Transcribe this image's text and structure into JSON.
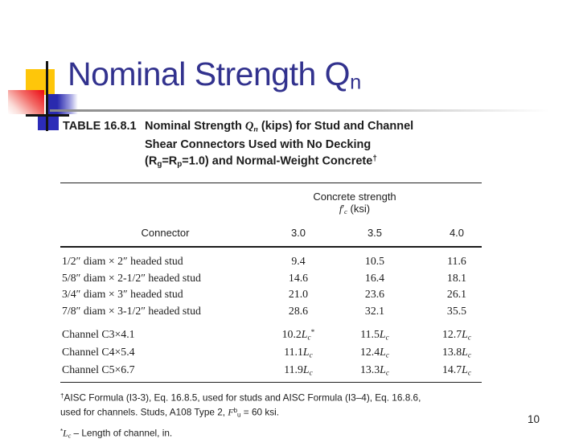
{
  "slide": {
    "title_runs": [
      {
        "t": "Nominal Strength Q"
      },
      {
        "t": "n",
        "s": "sub"
      }
    ],
    "page_number": "10",
    "colors": {
      "title_text": "#32328e",
      "accent_yellow": "#fec60a",
      "accent_red": "#ec1018",
      "accent_blue": "#2a2aae",
      "accent_blue_dark": "#2c2cb8",
      "rule_black": "#141414",
      "underline_gray": "#8a8a8a"
    }
  },
  "figure": {
    "caption": {
      "label": "TABLE 16.8.1",
      "lines": [
        [
          {
            "t": "Nominal Strength "
          },
          {
            "t": "Q",
            "s": "i"
          },
          {
            "t": "n",
            "s": "sub i"
          },
          {
            "t": " (kips) for Stud and Channel"
          }
        ],
        [
          {
            "t": "Shear Connectors Used with No Decking"
          }
        ],
        [
          {
            "t": "(R"
          },
          {
            "t": "g",
            "s": "sub"
          },
          {
            "t": "=R"
          },
          {
            "t": "p",
            "s": "sub"
          },
          {
            "t": "=1.0) and Normal-Weight Concrete"
          },
          {
            "t": "†",
            "s": "sup"
          }
        ]
      ]
    },
    "header": {
      "group_line1": [
        {
          "t": "Concrete strength"
        }
      ],
      "group_line2": [
        {
          "t": "f",
          "s": "i"
        },
        {
          "t": "′"
        },
        {
          "t": "c",
          "s": "sub i"
        },
        {
          "t": " (ksi)"
        }
      ],
      "connector_label": "Connector",
      "strength_values": [
        "3.0",
        "3.5",
        "4.0"
      ]
    },
    "stud_rows": [
      {
        "connector": "1/2″ diam × 2″ headed stud",
        "values": [
          "9.4",
          "10.5",
          "11.6"
        ]
      },
      {
        "connector": "5/8″ diam × 2-1/2″ headed stud",
        "values": [
          "14.6",
          "16.4",
          "18.1"
        ]
      },
      {
        "connector": "3/4″ diam × 3″ headed stud",
        "values": [
          "21.0",
          "23.6",
          "26.1"
        ]
      },
      {
        "connector": "7/8″ diam × 3-1/2″ headed stud",
        "values": [
          "28.6",
          "32.1",
          "35.5"
        ]
      }
    ],
    "channel_rows": [
      {
        "connector": "Channel C3×4.1",
        "values": [
          [
            {
              "t": "10.2"
            },
            {
              "t": "L",
              "s": "i"
            },
            {
              "t": "c",
              "s": "sub i"
            },
            {
              "t": "*",
              "s": "sup"
            }
          ],
          [
            {
              "t": "11.5"
            },
            {
              "t": "L",
              "s": "i"
            },
            {
              "t": "c",
              "s": "sub i"
            }
          ],
          [
            {
              "t": "12.7"
            },
            {
              "t": "L",
              "s": "i"
            },
            {
              "t": "c",
              "s": "sub i"
            }
          ]
        ]
      },
      {
        "connector": "Channel C4×5.4",
        "values": [
          [
            {
              "t": "11.1"
            },
            {
              "t": "L",
              "s": "i"
            },
            {
              "t": "c",
              "s": "sub i"
            }
          ],
          [
            {
              "t": "12.4"
            },
            {
              "t": "L",
              "s": "i"
            },
            {
              "t": "c",
              "s": "sub i"
            }
          ],
          [
            {
              "t": "13.8"
            },
            {
              "t": "L",
              "s": "i"
            },
            {
              "t": "c",
              "s": "sub i"
            }
          ]
        ]
      },
      {
        "connector": "Channel C5×6.7",
        "values": [
          [
            {
              "t": "11.9"
            },
            {
              "t": "L",
              "s": "i"
            },
            {
              "t": "c",
              "s": "sub i"
            }
          ],
          [
            {
              "t": "13.3"
            },
            {
              "t": "L",
              "s": "i"
            },
            {
              "t": "c",
              "s": "sub i"
            }
          ],
          [
            {
              "t": "14.7"
            },
            {
              "t": "L",
              "s": "i"
            },
            {
              "t": "c",
              "s": "sub i"
            }
          ]
        ]
      }
    ],
    "footnotes": [
      [
        {
          "t": "†",
          "s": "sup"
        },
        {
          "t": "AISC Formula (I3-3), Eq. 16.8.5, used for studs and AISC Formula (I3–4), Eq. 16.8.6,"
        },
        {
          "s": "br"
        },
        {
          "t": "used for channels. Studs, A108 Type 2, "
        },
        {
          "t": "F",
          "s": "i"
        },
        {
          "t": "b",
          "s": "sup"
        },
        {
          "t": "u",
          "s": "sub"
        },
        {
          "t": " = 60 ksi."
        }
      ],
      [
        {
          "t": "*",
          "s": "sup"
        },
        {
          "t": "L",
          "s": "i"
        },
        {
          "t": "c",
          "s": "sub i"
        },
        {
          "t": " – Length of channel, in."
        }
      ]
    ]
  }
}
